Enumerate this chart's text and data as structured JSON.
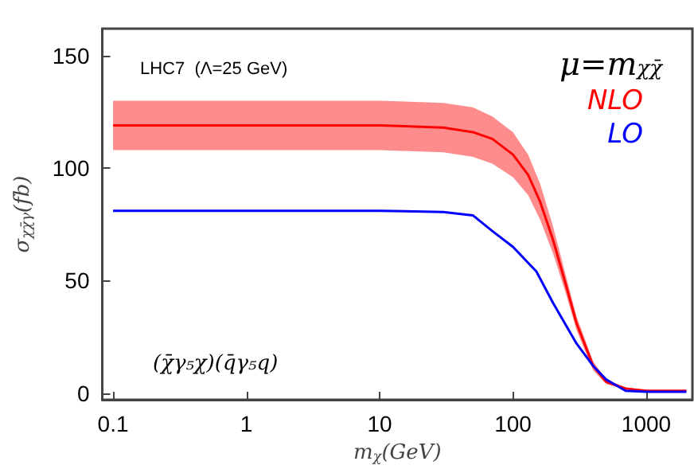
{
  "chart_data": {
    "type": "line",
    "xlabel": "m$_{χ}$(GeV)",
    "ylabel": "σ$_{χχ̄γ}$(fb)",
    "log": "x",
    "xlim": [
      0.083,
      2220
    ],
    "xticks": [
      0.1,
      1,
      10,
      100,
      1000
    ],
    "ylim": [
      -3,
      162
    ],
    "yticks": [
      0,
      50,
      100,
      150
    ],
    "grid": false,
    "legend": "top right",
    "marker": "none",
    "line_style": "solid",
    "annotations": [
      "LHC7  (Λ=25 GeV)",
      "μ=m$_{χχ̄}$",
      "(χ̄γ₅χ)(q̄γ₅q)"
    ],
    "series": [
      {
        "name": "NLO",
        "color": "#ff0000",
        "x": [
          0.1,
          10,
          30,
          50,
          70,
          100,
          130,
          160,
          200,
          250,
          300,
          400,
          500,
          700,
          1000,
          2000
        ],
        "values": [
          119,
          119,
          118,
          116,
          113,
          106,
          97,
          85,
          68,
          48,
          31,
          12,
          5,
          2,
          1,
          1
        ],
        "lower": [
          108,
          108,
          107,
          105,
          102,
          96,
          88,
          77,
          62,
          44,
          28,
          10,
          4,
          1.5,
          0.8,
          0.8
        ],
        "upper": [
          130,
          130,
          129,
          127,
          123,
          116,
          106,
          93,
          74,
          52,
          34,
          14,
          6,
          2.5,
          1.2,
          1.2
        ]
      },
      {
        "name": "LO",
        "color": "#0000ff",
        "x": [
          0.1,
          10,
          30,
          50,
          70,
          100,
          150,
          200,
          300,
          400,
          500,
          700,
          1000,
          2000
        ],
        "values": [
          81,
          81,
          80.5,
          79,
          72,
          65,
          54,
          40,
          22,
          12,
          6,
          1,
          0.5,
          0.5
        ]
      }
    ]
  }
}
